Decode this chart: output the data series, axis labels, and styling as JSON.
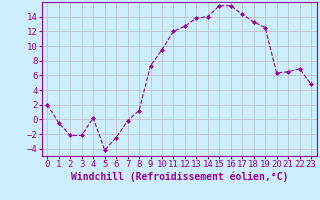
{
  "x": [
    0,
    1,
    2,
    3,
    4,
    5,
    6,
    7,
    8,
    9,
    10,
    11,
    12,
    13,
    14,
    15,
    16,
    17,
    18,
    19,
    20,
    21,
    22,
    23
  ],
  "y": [
    2,
    -0.5,
    -2.2,
    -2.2,
    0.2,
    -4.2,
    -2.5,
    -0.2,
    1.2,
    7.3,
    9.5,
    12.0,
    12.7,
    13.8,
    14.0,
    15.5,
    15.5,
    14.3,
    13.3,
    12.5,
    6.3,
    6.5,
    6.9,
    4.8
  ],
  "line_color": "#990099",
  "marker": "D",
  "marker_size": 2.5,
  "xlabel": "Windchill (Refroidissement éolien,°C)",
  "xlim": [
    -0.5,
    23.5
  ],
  "ylim": [
    -5,
    16
  ],
  "yticks": [
    -4,
    -2,
    0,
    2,
    4,
    6,
    8,
    10,
    12,
    14
  ],
  "xticks": [
    0,
    1,
    2,
    3,
    4,
    5,
    6,
    7,
    8,
    9,
    10,
    11,
    12,
    13,
    14,
    15,
    16,
    17,
    18,
    19,
    20,
    21,
    22,
    23
  ],
  "bg_color": "#cceeff",
  "grid_color": "#bbbbbb",
  "label_color": "#990099",
  "tick_color": "#990099",
  "spine_color": "#990099",
  "xlabel_fontsize": 7.0,
  "tick_fontsize": 6.5
}
